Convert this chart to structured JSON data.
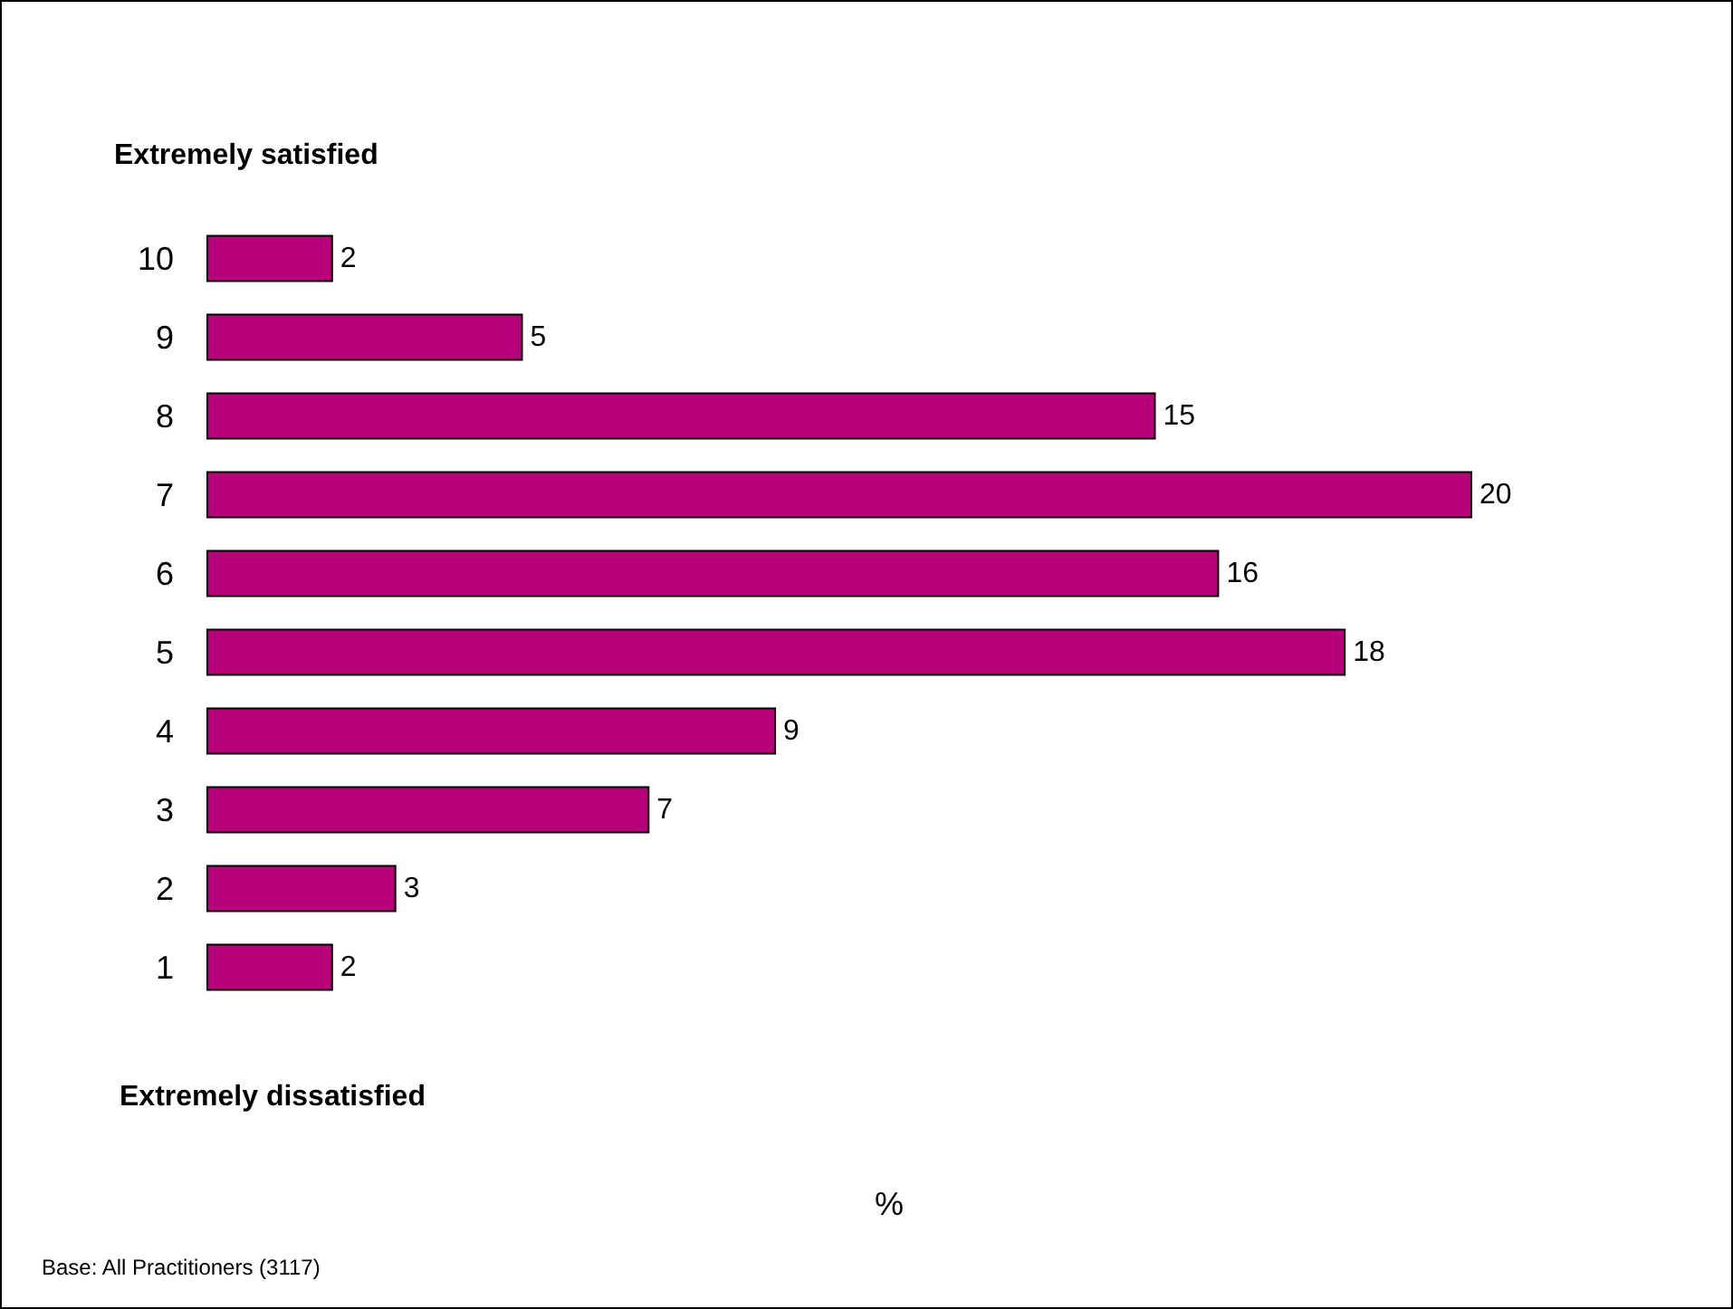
{
  "chart_data": {
    "type": "bar",
    "orientation": "horizontal",
    "title": "Extremely satisfied",
    "categories": [
      "10",
      "9",
      "8",
      "7",
      "6",
      "5",
      "4",
      "3",
      "2",
      "1"
    ],
    "values": [
      2,
      5,
      15,
      20,
      16,
      18,
      9,
      7,
      3,
      2
    ],
    "color": "#b8007a",
    "data_labels": true,
    "tick_labels": "y",
    "annotations": [
      "Extremely dissatisfied",
      "%",
      "Base: All Practitioners (3117)"
    ]
  }
}
